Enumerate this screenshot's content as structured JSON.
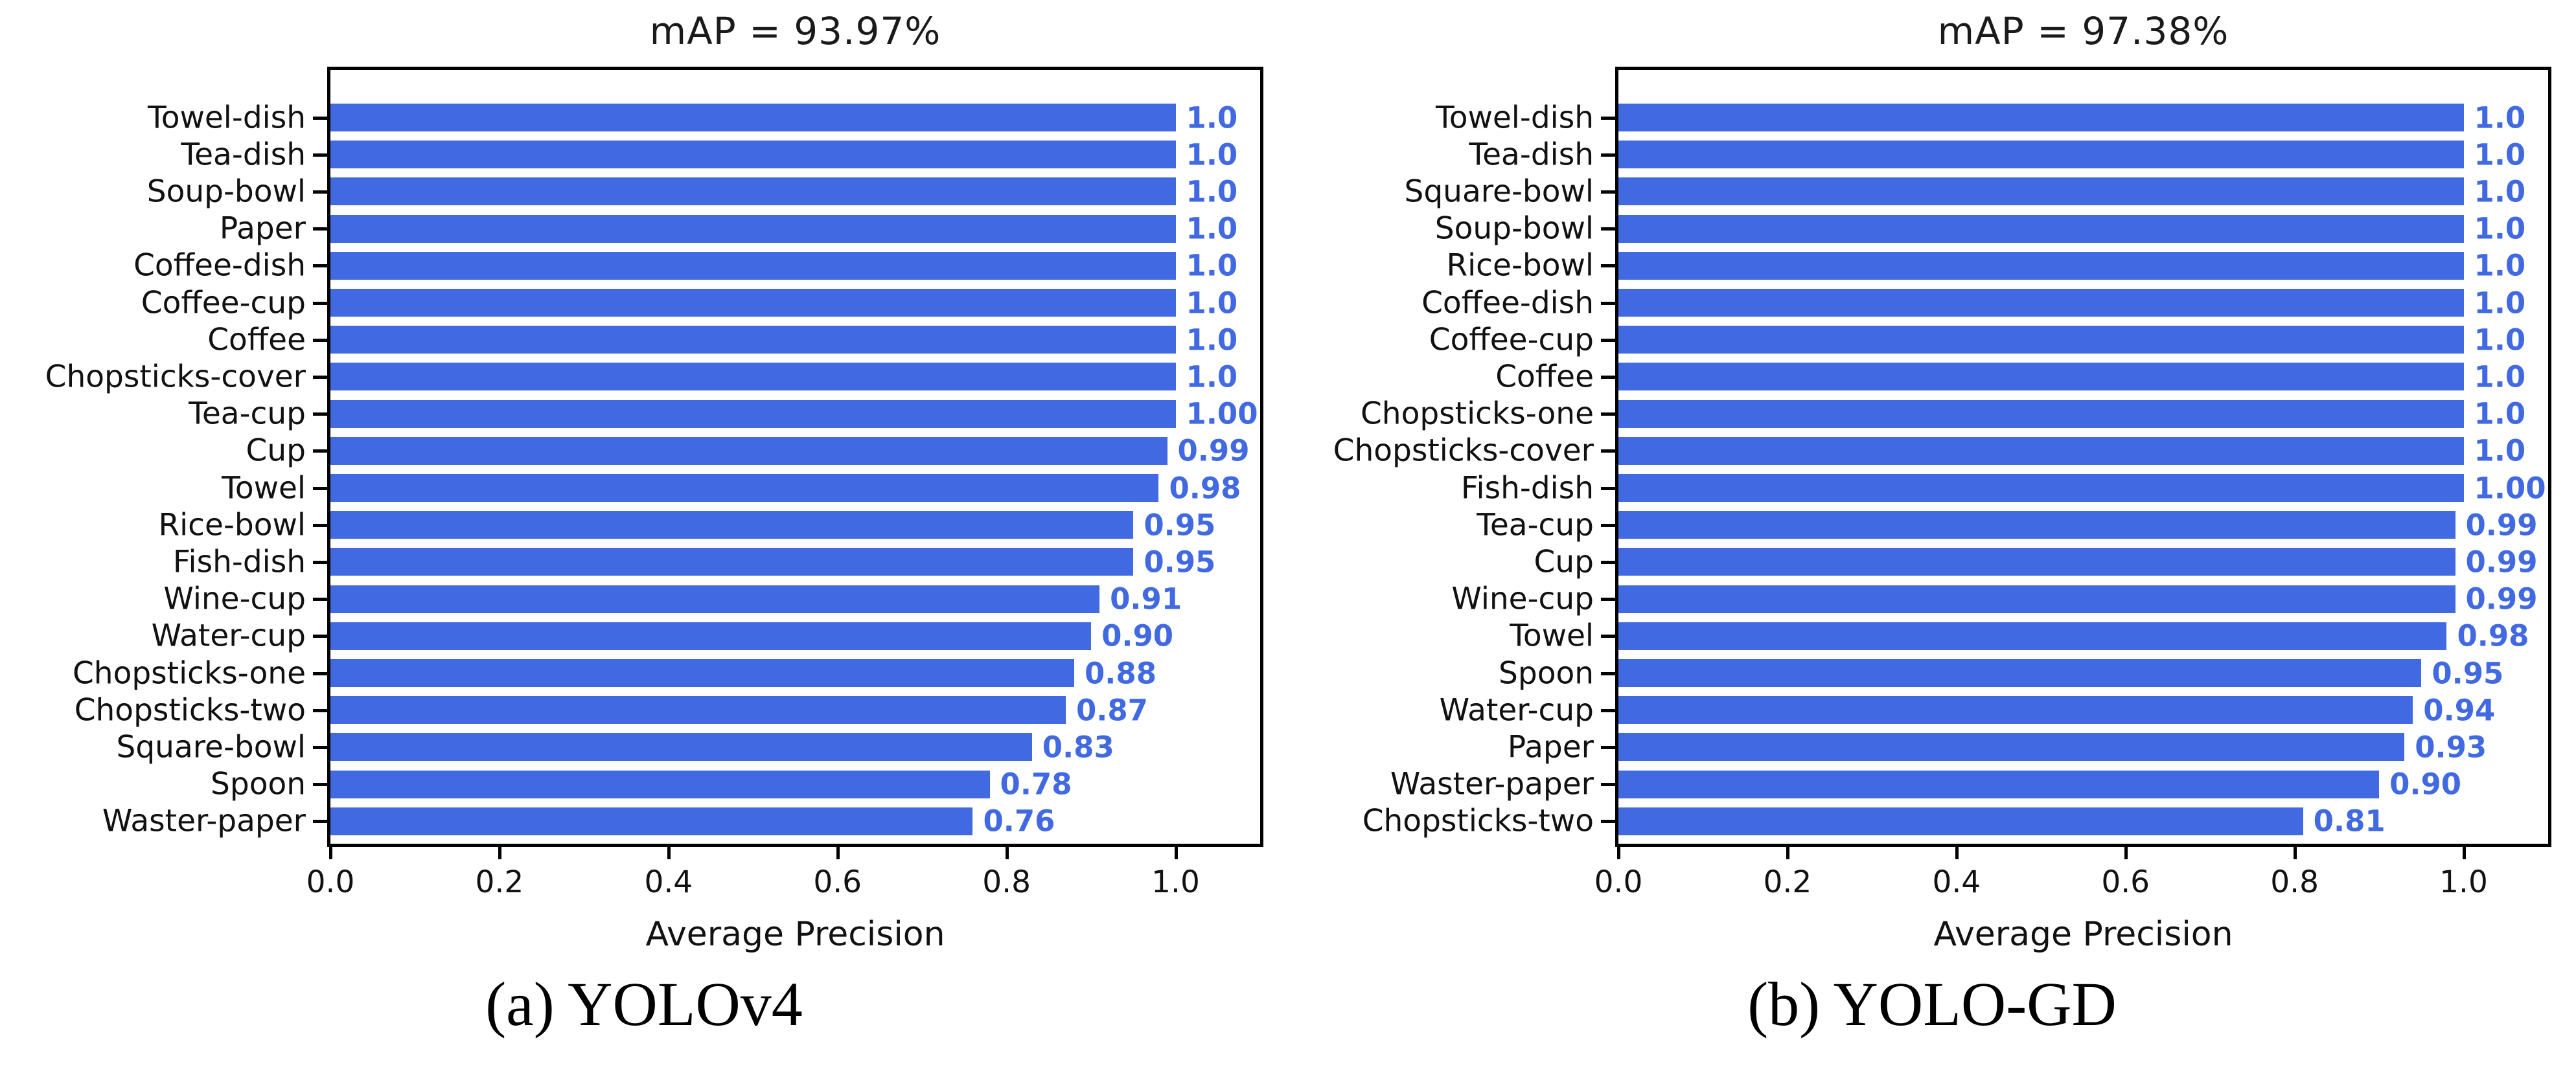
{
  "chart_data": [
    {
      "type": "bar",
      "orientation": "horizontal",
      "title": "mAP = 93.97%",
      "caption": "(a) YOLOv4",
      "xlabel": "Average Precision",
      "ylabel": "",
      "xlim": [
        0,
        1.1
      ],
      "grid": false,
      "legend": null,
      "x_tick_labels": [
        "0.0",
        "0.2",
        "0.4",
        "0.6",
        "0.8",
        "1.0"
      ],
      "x_tick_values": [
        0.0,
        0.2,
        0.4,
        0.6,
        0.8,
        1.0
      ],
      "bar_color": "#4169e1",
      "value_label_color": "#4169e1",
      "categories": [
        "Towel-dish",
        "Tea-dish",
        "Soup-bowl",
        "Paper",
        "Coffee-dish",
        "Coffee-cup",
        "Coffee",
        "Chopsticks-cover",
        "Tea-cup",
        "Cup",
        "Towel",
        "Rice-bowl",
        "Fish-dish",
        "Wine-cup",
        "Water-cup",
        "Chopsticks-one",
        "Chopsticks-two",
        "Square-bowl",
        "Spoon",
        "Waster-paper"
      ],
      "values": [
        1.0,
        1.0,
        1.0,
        1.0,
        1.0,
        1.0,
        1.0,
        1.0,
        1.0,
        0.99,
        0.98,
        0.95,
        0.95,
        0.91,
        0.9,
        0.88,
        0.87,
        0.83,
        0.78,
        0.76
      ],
      "value_labels": [
        "1.0",
        "1.0",
        "1.0",
        "1.0",
        "1.0",
        "1.0",
        "1.0",
        "1.0",
        "1.00",
        "0.99",
        "0.98",
        "0.95",
        "0.95",
        "0.91",
        "0.90",
        "0.88",
        "0.87",
        "0.83",
        "0.78",
        "0.76"
      ]
    },
    {
      "type": "bar",
      "orientation": "horizontal",
      "title": "mAP = 97.38%",
      "caption": "(b) YOLO-GD",
      "xlabel": "Average Precision",
      "ylabel": "",
      "xlim": [
        0,
        1.1
      ],
      "grid": false,
      "legend": null,
      "x_tick_labels": [
        "0.0",
        "0.2",
        "0.4",
        "0.6",
        "0.8",
        "1.0"
      ],
      "x_tick_values": [
        0.0,
        0.2,
        0.4,
        0.6,
        0.8,
        1.0
      ],
      "bar_color": "#4169e1",
      "value_label_color": "#4169e1",
      "categories": [
        "Towel-dish",
        "Tea-dish",
        "Square-bowl",
        "Soup-bowl",
        "Rice-bowl",
        "Coffee-dish",
        "Coffee-cup",
        "Coffee",
        "Chopsticks-one",
        "Chopsticks-cover",
        "Fish-dish",
        "Tea-cup",
        "Cup",
        "Wine-cup",
        "Towel",
        "Spoon",
        "Water-cup",
        "Paper",
        "Waster-paper",
        "Chopsticks-two"
      ],
      "values": [
        1.0,
        1.0,
        1.0,
        1.0,
        1.0,
        1.0,
        1.0,
        1.0,
        1.0,
        1.0,
        1.0,
        0.99,
        0.99,
        0.99,
        0.98,
        0.95,
        0.94,
        0.93,
        0.9,
        0.81
      ],
      "value_labels": [
        "1.0",
        "1.0",
        "1.0",
        "1.0",
        "1.0",
        "1.0",
        "1.0",
        "1.0",
        "1.0",
        "1.0",
        "1.00",
        "0.99",
        "0.99",
        "0.99",
        "0.98",
        "0.95",
        "0.94",
        "0.93",
        "0.90",
        "0.81"
      ]
    }
  ]
}
